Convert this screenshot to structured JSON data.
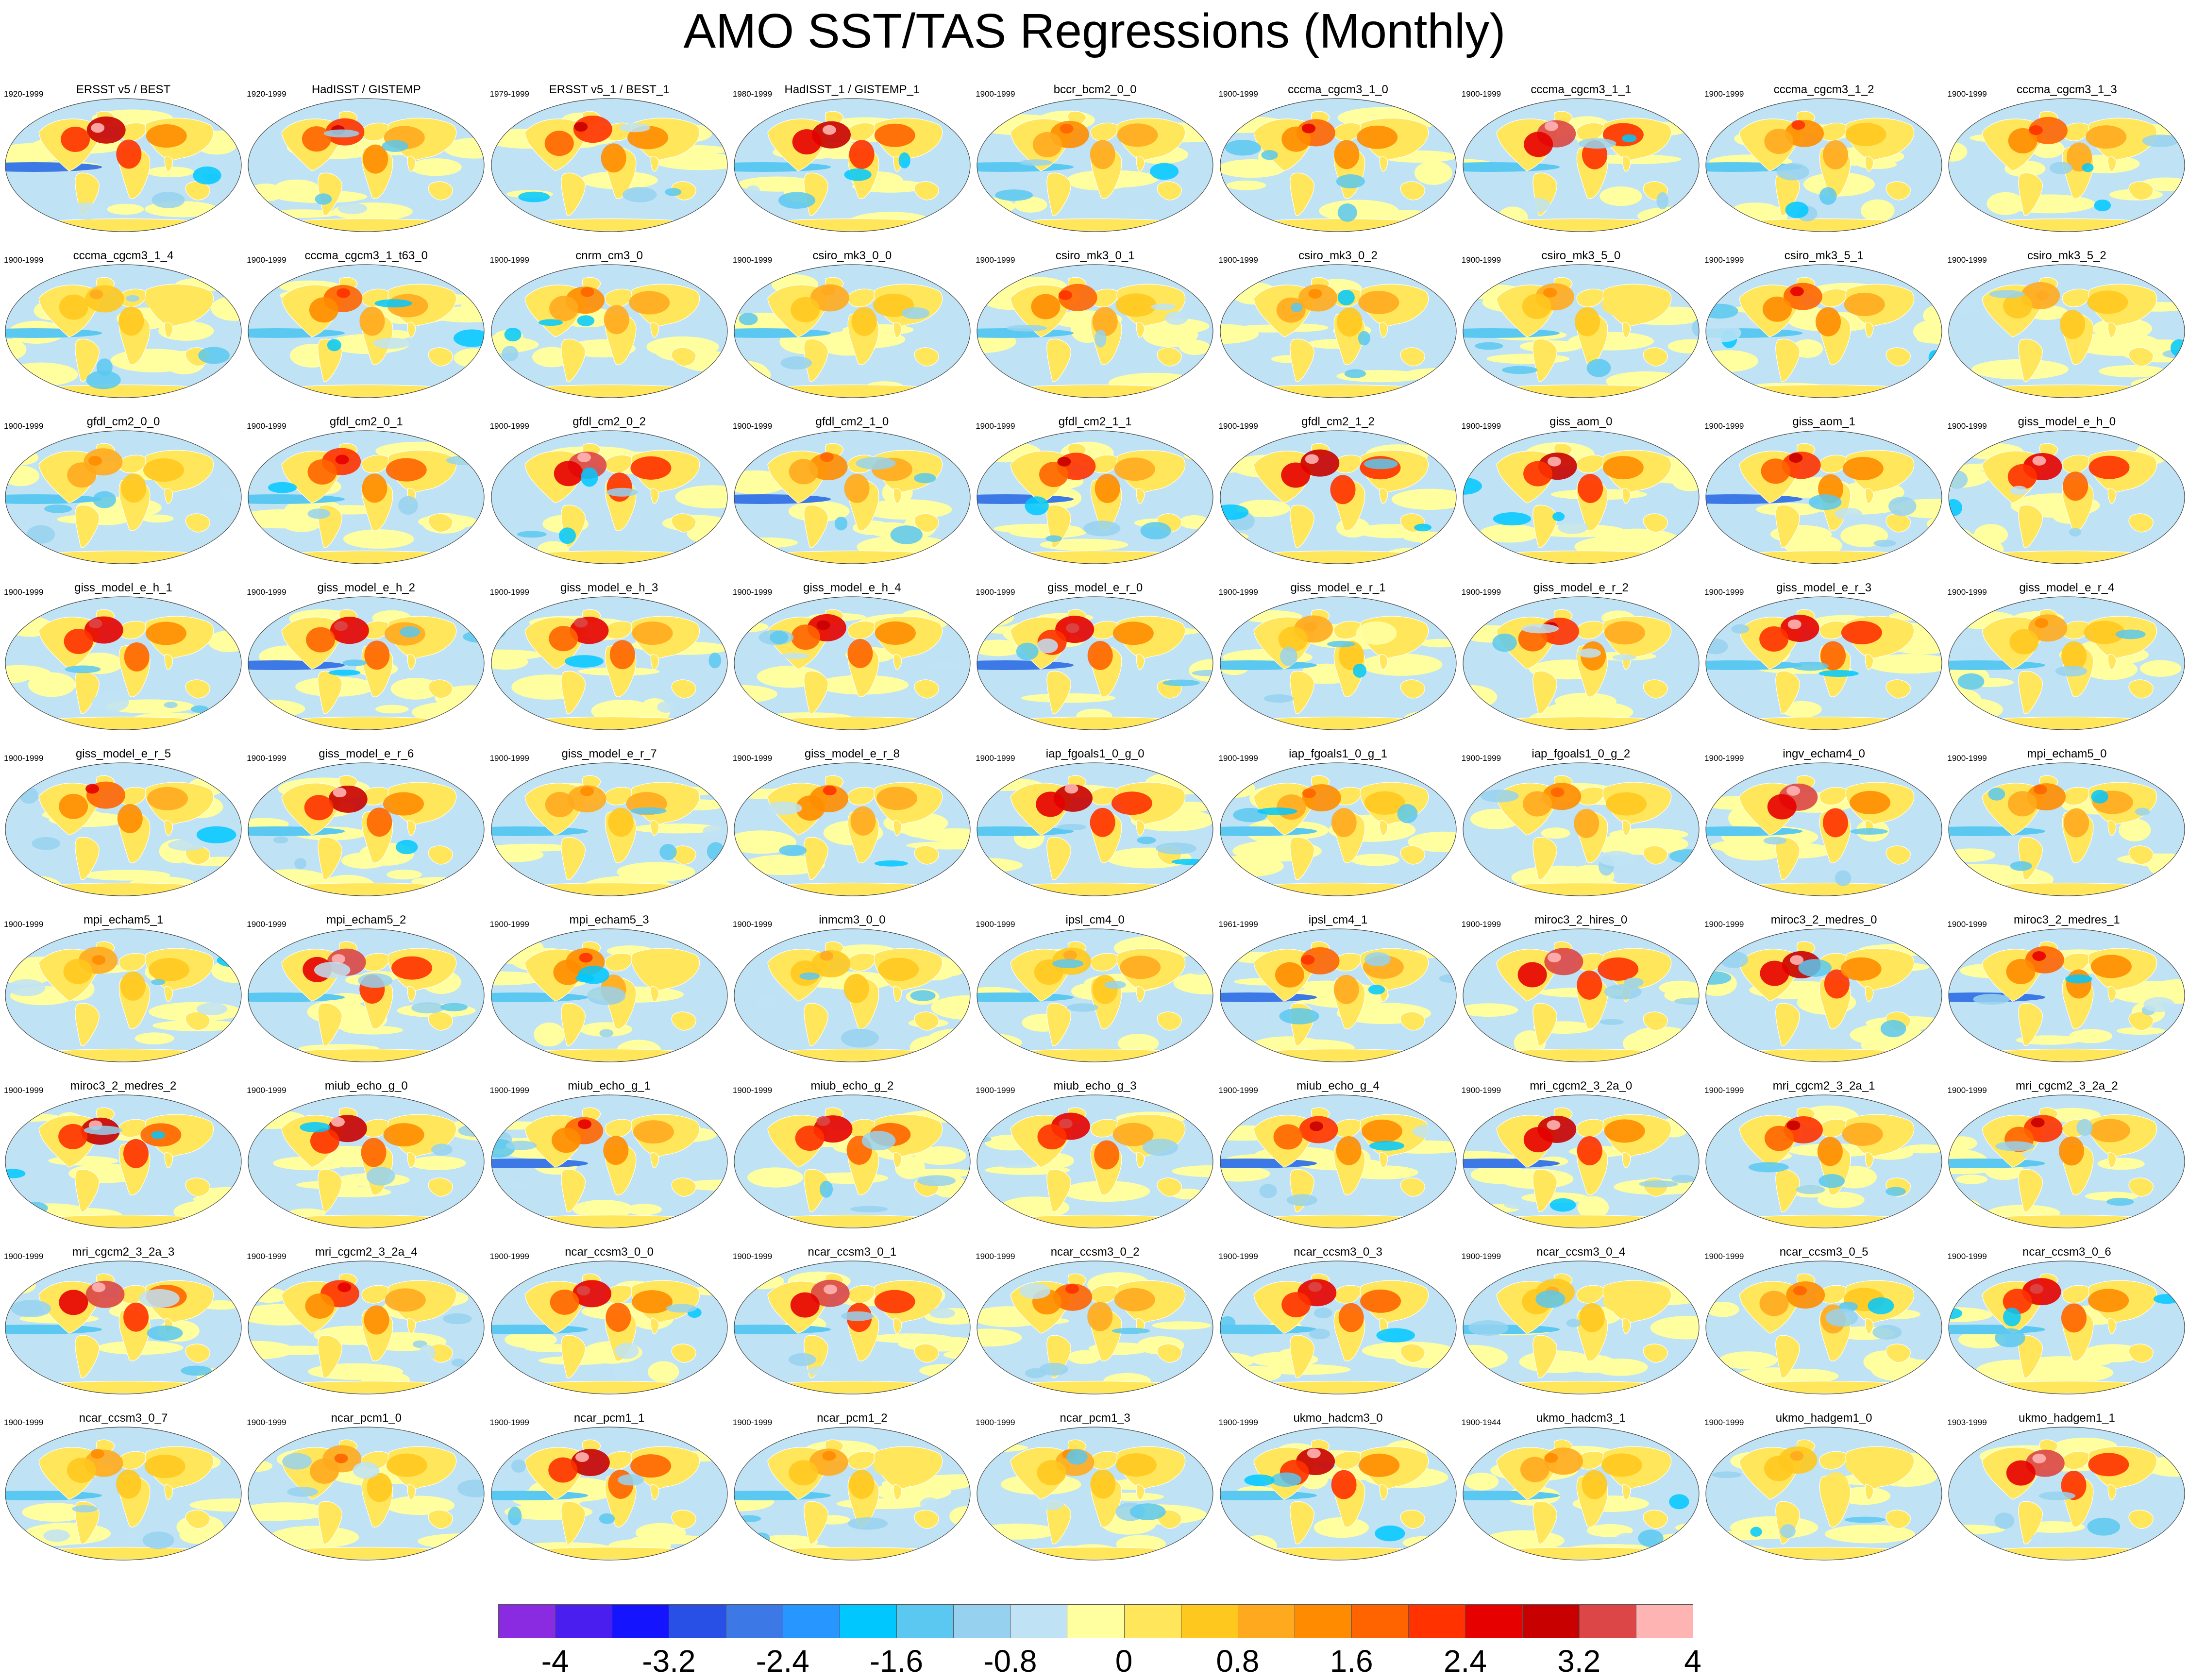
{
  "title": "AMO SST/TAS Regressions (Monthly)",
  "colorbar": {
    "colors": [
      "#8a2be2",
      "#4b1ef0",
      "#1414ff",
      "#2850e6",
      "#3c78e6",
      "#2896ff",
      "#00c8ff",
      "#5ac8f0",
      "#96d2f0",
      "#bfe3f5",
      "#ffffa0",
      "#ffe65a",
      "#ffc81e",
      "#ffaa1e",
      "#ff8c00",
      "#ff6400",
      "#ff3200",
      "#e60000",
      "#c80000",
      "#dc4646",
      "#ffb4b4"
    ],
    "tick_labels": [
      "-4",
      "-3.2",
      "-2.4",
      "-1.6",
      "-0.8",
      "0",
      "0.8",
      "1.6",
      "2.4",
      "3.2",
      "4"
    ]
  },
  "panels": [
    {
      "title": "ERSST v5 / BEST",
      "years": "1920-1999"
    },
    {
      "title": "HadISST / GISTEMP",
      "years": "1920-1999"
    },
    {
      "title": "ERSST v5_1 / BEST_1",
      "years": "1979-1999"
    },
    {
      "title": "HadISST_1 / GISTEMP_1",
      "years": "1980-1999"
    },
    {
      "title": "bccr_bcm2_0_0",
      "years": "1900-1999"
    },
    {
      "title": "cccma_cgcm3_1_0",
      "years": "1900-1999"
    },
    {
      "title": "cccma_cgcm3_1_1",
      "years": "1900-1999"
    },
    {
      "title": "cccma_cgcm3_1_2",
      "years": "1900-1999"
    },
    {
      "title": "cccma_cgcm3_1_3",
      "years": "1900-1999"
    },
    {
      "title": "cccma_cgcm3_1_4",
      "years": "1900-1999"
    },
    {
      "title": "cccma_cgcm3_1_t63_0",
      "years": "1900-1999"
    },
    {
      "title": "cnrm_cm3_0",
      "years": "1900-1999"
    },
    {
      "title": "csiro_mk3_0_0",
      "years": "1900-1999"
    },
    {
      "title": "csiro_mk3_0_1",
      "years": "1900-1999"
    },
    {
      "title": "csiro_mk3_0_2",
      "years": "1900-1999"
    },
    {
      "title": "csiro_mk3_5_0",
      "years": "1900-1999"
    },
    {
      "title": "csiro_mk3_5_1",
      "years": "1900-1999"
    },
    {
      "title": "csiro_mk3_5_2",
      "years": "1900-1999"
    },
    {
      "title": "gfdl_cm2_0_0",
      "years": "1900-1999"
    },
    {
      "title": "gfdl_cm2_0_1",
      "years": "1900-1999"
    },
    {
      "title": "gfdl_cm2_0_2",
      "years": "1900-1999"
    },
    {
      "title": "gfdl_cm2_1_0",
      "years": "1900-1999"
    },
    {
      "title": "gfdl_cm2_1_1",
      "years": "1900-1999"
    },
    {
      "title": "gfdl_cm2_1_2",
      "years": "1900-1999"
    },
    {
      "title": "giss_aom_0",
      "years": "1900-1999"
    },
    {
      "title": "giss_aom_1",
      "years": "1900-1999"
    },
    {
      "title": "giss_model_e_h_0",
      "years": "1900-1999"
    },
    {
      "title": "giss_model_e_h_1",
      "years": "1900-1999"
    },
    {
      "title": "giss_model_e_h_2",
      "years": "1900-1999"
    },
    {
      "title": "giss_model_e_h_3",
      "years": "1900-1999"
    },
    {
      "title": "giss_model_e_h_4",
      "years": "1900-1999"
    },
    {
      "title": "giss_model_e_r_0",
      "years": "1900-1999"
    },
    {
      "title": "giss_model_e_r_1",
      "years": "1900-1999"
    },
    {
      "title": "giss_model_e_r_2",
      "years": "1900-1999"
    },
    {
      "title": "giss_model_e_r_3",
      "years": "1900-1999"
    },
    {
      "title": "giss_model_e_r_4",
      "years": "1900-1999"
    },
    {
      "title": "giss_model_e_r_5",
      "years": "1900-1999"
    },
    {
      "title": "giss_model_e_r_6",
      "years": "1900-1999"
    },
    {
      "title": "giss_model_e_r_7",
      "years": "1900-1999"
    },
    {
      "title": "giss_model_e_r_8",
      "years": "1900-1999"
    },
    {
      "title": "iap_fgoals1_0_g_0",
      "years": "1900-1999"
    },
    {
      "title": "iap_fgoals1_0_g_1",
      "years": "1900-1999"
    },
    {
      "title": "iap_fgoals1_0_g_2",
      "years": "1900-1999"
    },
    {
      "title": "ingv_echam4_0",
      "years": "1900-1999"
    },
    {
      "title": "mpi_echam5_0",
      "years": "1900-1999"
    },
    {
      "title": "mpi_echam5_1",
      "years": "1900-1999"
    },
    {
      "title": "mpi_echam5_2",
      "years": "1900-1999"
    },
    {
      "title": "mpi_echam5_3",
      "years": "1900-1999"
    },
    {
      "title": "inmcm3_0_0",
      "years": "1900-1999"
    },
    {
      "title": "ipsl_cm4_0",
      "years": "1900-1999"
    },
    {
      "title": "ipsl_cm4_1",
      "years": "1961-1999"
    },
    {
      "title": "miroc3_2_hires_0",
      "years": "1900-1999"
    },
    {
      "title": "miroc3_2_medres_0",
      "years": "1900-1999"
    },
    {
      "title": "miroc3_2_medres_1",
      "years": "1900-1999"
    },
    {
      "title": "miroc3_2_medres_2",
      "years": "1900-1999"
    },
    {
      "title": "miub_echo_g_0",
      "years": "1900-1999"
    },
    {
      "title": "miub_echo_g_1",
      "years": "1900-1999"
    },
    {
      "title": "miub_echo_g_2",
      "years": "1900-1999"
    },
    {
      "title": "miub_echo_g_3",
      "years": "1900-1999"
    },
    {
      "title": "miub_echo_g_4",
      "years": "1900-1999"
    },
    {
      "title": "mri_cgcm2_3_2a_0",
      "years": "1900-1999"
    },
    {
      "title": "mri_cgcm2_3_2a_1",
      "years": "1900-1999"
    },
    {
      "title": "mri_cgcm2_3_2a_2",
      "years": "1900-1999"
    },
    {
      "title": "mri_cgcm2_3_2a_3",
      "years": "1900-1999"
    },
    {
      "title": "mri_cgcm2_3_2a_4",
      "years": "1900-1999"
    },
    {
      "title": "ncar_ccsm3_0_0",
      "years": "1900-1999"
    },
    {
      "title": "ncar_ccsm3_0_1",
      "years": "1900-1999"
    },
    {
      "title": "ncar_ccsm3_0_2",
      "years": "1900-1999"
    },
    {
      "title": "ncar_ccsm3_0_3",
      "years": "1900-1999"
    },
    {
      "title": "ncar_ccsm3_0_4",
      "years": "1900-1999"
    },
    {
      "title": "ncar_ccsm3_0_5",
      "years": "1900-1999"
    },
    {
      "title": "ncar_ccsm3_0_6",
      "years": "1900-1999"
    },
    {
      "title": "ncar_ccsm3_0_7",
      "years": "1900-1999"
    },
    {
      "title": "ncar_pcm1_0",
      "years": "1900-1999"
    },
    {
      "title": "ncar_pcm1_1",
      "years": "1900-1999"
    },
    {
      "title": "ncar_pcm1_2",
      "years": "1900-1999"
    },
    {
      "title": "ncar_pcm1_3",
      "years": "1900-1999"
    },
    {
      "title": "ukmo_hadcm3_0",
      "years": "1900-1999"
    },
    {
      "title": "ukmo_hadcm3_1",
      "years": "1900-1944"
    },
    {
      "title": "ukmo_hadgem1_0",
      "years": "1900-1999"
    },
    {
      "title": "ukmo_hadgem1_1",
      "years": "1903-1999"
    }
  ]
}
